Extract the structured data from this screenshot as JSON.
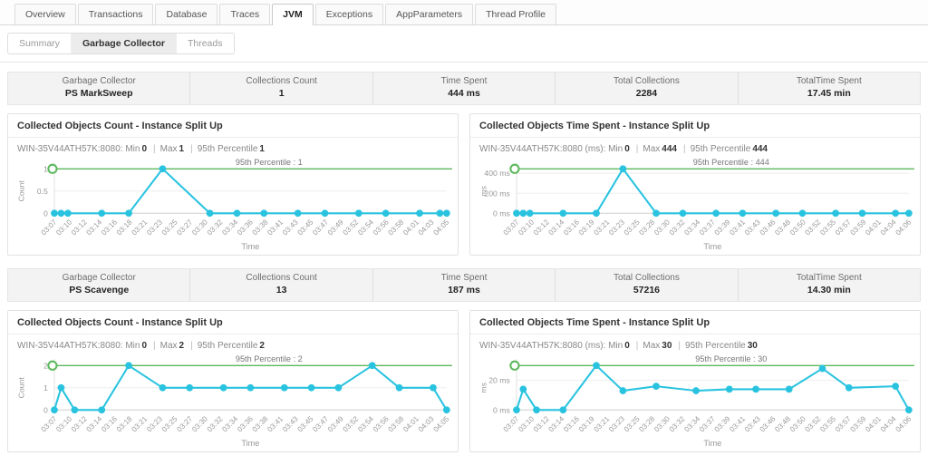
{
  "header_tabs": [
    {
      "label": "Overview",
      "active": false
    },
    {
      "label": "Transactions",
      "active": false
    },
    {
      "label": "Database",
      "active": false
    },
    {
      "label": "Traces",
      "active": false
    },
    {
      "label": "JVM",
      "active": true
    },
    {
      "label": "Exceptions",
      "active": false
    },
    {
      "label": "AppParameters",
      "active": false
    },
    {
      "label": "Thread Profile",
      "active": false
    }
  ],
  "sub_tabs": [
    {
      "label": "Summary",
      "active": false
    },
    {
      "label": "Garbage Collector",
      "active": true
    },
    {
      "label": "Threads",
      "active": false
    }
  ],
  "labels": {
    "min": "Min",
    "max": "Max",
    "p95": "95th Percentile",
    "sep": "|",
    "time_axis": "Time"
  },
  "colors": {
    "series": "#29c3e0",
    "percentile_line": "#5cb85c",
    "grid": "#ededed",
    "axis": "#cfcfcf",
    "tick_text": "#999999"
  },
  "sections": [
    {
      "stats": [
        {
          "label": "Garbage Collector",
          "value": "PS MarkSweep"
        },
        {
          "label": "Collections Count",
          "value": "1"
        },
        {
          "label": "Time Spent",
          "value": "444 ms"
        },
        {
          "label": "Total Collections",
          "value": "2284"
        },
        {
          "label": "TotalTime Spent",
          "value": "17.45 min"
        }
      ],
      "charts": [
        {
          "title": "Collected Objects Count - Instance Split Up",
          "instance_label": "WIN-35V44ATH57K:8080:",
          "min": "0",
          "max": "1",
          "p95": "1",
          "percentile_label": "95th Percentile : 1",
          "y_axis_label": "Count",
          "y_max": 1,
          "y_ticks": [
            {
              "v": 0,
              "label": "0"
            },
            {
              "v": 0.5,
              "label": "0.5"
            },
            {
              "v": 1,
              "label": "1"
            }
          ],
          "x_domain": [
            7,
            65
          ],
          "x_tick_labels": [
            "03:07",
            "03:10",
            "03:12",
            "03:14",
            "03:16",
            "03:18",
            "03:21",
            "03:23",
            "03:25",
            "03:27",
            "03:30",
            "03:32",
            "03:34",
            "03:36",
            "03:38",
            "03:41",
            "03:43",
            "03:45",
            "03:47",
            "03:49",
            "03:52",
            "03:54",
            "03:56",
            "03:58",
            "04:01",
            "04:03",
            "04:05"
          ],
          "points": [
            [
              7,
              0
            ],
            [
              8,
              0
            ],
            [
              9,
              0
            ],
            [
              14,
              0
            ],
            [
              18,
              0
            ],
            [
              23,
              1
            ],
            [
              30,
              0
            ],
            [
              34,
              0
            ],
            [
              38,
              0
            ],
            [
              43,
              0
            ],
            [
              47,
              0
            ],
            [
              52,
              0
            ],
            [
              56,
              0
            ],
            [
              61,
              0
            ],
            [
              64,
              0
            ],
            [
              65,
              0
            ]
          ]
        },
        {
          "title": "Collected Objects Time Spent - Instance Split Up",
          "instance_label": "WIN-35V44ATH57K:8080 (ms):",
          "min": "0",
          "max": "444",
          "p95": "444",
          "percentile_label": "95th Percentile : 444",
          "y_axis_label": "ms",
          "y_max": 444,
          "y_ticks": [
            {
              "v": 0,
              "label": "0 ms"
            },
            {
              "v": 200,
              "label": "200 ms"
            },
            {
              "v": 400,
              "label": "400 ms"
            }
          ],
          "x_domain": [
            7,
            66
          ],
          "x_tick_labels": [
            "03:07",
            "03:10",
            "03:12",
            "03:14",
            "03:16",
            "03:19",
            "03:21",
            "03:23",
            "03:25",
            "03:28",
            "03:30",
            "03:32",
            "03:34",
            "03:37",
            "03:39",
            "03:41",
            "03:43",
            "03:46",
            "03:48",
            "03:50",
            "03:52",
            "03:55",
            "03:57",
            "03:59",
            "04:01",
            "04:04",
            "04:06"
          ],
          "points": [
            [
              7,
              0
            ],
            [
              8,
              0
            ],
            [
              9,
              0
            ],
            [
              14,
              0
            ],
            [
              19,
              0
            ],
            [
              23,
              444
            ],
            [
              28,
              0
            ],
            [
              32,
              0
            ],
            [
              37,
              0
            ],
            [
              41,
              0
            ],
            [
              46,
              0
            ],
            [
              50,
              0
            ],
            [
              55,
              0
            ],
            [
              59,
              0
            ],
            [
              64,
              0
            ],
            [
              66,
              0
            ]
          ]
        }
      ]
    },
    {
      "stats": [
        {
          "label": "Garbage Collector",
          "value": "PS Scavenge"
        },
        {
          "label": "Collections Count",
          "value": "13"
        },
        {
          "label": "Time Spent",
          "value": "187 ms"
        },
        {
          "label": "Total Collections",
          "value": "57216"
        },
        {
          "label": "TotalTime Spent",
          "value": "14.30 min"
        }
      ],
      "charts": [
        {
          "title": "Collected Objects Count - Instance Split Up",
          "instance_label": "WIN-35V44ATH57K:8080:",
          "min": "0",
          "max": "2",
          "p95": "2",
          "percentile_label": "95th Percentile : 2",
          "y_axis_label": "Count",
          "y_max": 2,
          "y_ticks": [
            {
              "v": 0,
              "label": "0"
            },
            {
              "v": 1,
              "label": "1"
            },
            {
              "v": 2,
              "label": "2"
            }
          ],
          "x_domain": [
            7,
            65
          ],
          "x_tick_labels": [
            "03:07",
            "03:10",
            "03:12",
            "03:14",
            "03:16",
            "03:18",
            "03:21",
            "03:23",
            "03:25",
            "03:27",
            "03:30",
            "03:32",
            "03:34",
            "03:36",
            "03:38",
            "03:41",
            "03:43",
            "03:45",
            "03:47",
            "03:49",
            "03:52",
            "03:54",
            "03:56",
            "03:58",
            "04:01",
            "04:03",
            "04:05"
          ],
          "points": [
            [
              7,
              0
            ],
            [
              8,
              1
            ],
            [
              10,
              0
            ],
            [
              14,
              0
            ],
            [
              18,
              2
            ],
            [
              23,
              1
            ],
            [
              27,
              1
            ],
            [
              32,
              1
            ],
            [
              36,
              1
            ],
            [
              41,
              1
            ],
            [
              45,
              1
            ],
            [
              49,
              1
            ],
            [
              54,
              2
            ],
            [
              58,
              1
            ],
            [
              63,
              1
            ],
            [
              65,
              0
            ]
          ]
        },
        {
          "title": "Collected Objects Time Spent - Instance Split Up",
          "instance_label": "WIN-35V44ATH57K:8080 (ms):",
          "min": "0",
          "max": "30",
          "p95": "30",
          "percentile_label": "95th Percentile : 30",
          "y_axis_label": "ms",
          "y_max": 30,
          "y_ticks": [
            {
              "v": 0,
              "label": "0 ms"
            },
            {
              "v": 20,
              "label": "20 ms"
            }
          ],
          "x_domain": [
            7,
            66
          ],
          "x_tick_labels": [
            "03:07",
            "03:10",
            "03:12",
            "03:14",
            "03:16",
            "03:19",
            "03:21",
            "03:23",
            "03:25",
            "03:28",
            "03:30",
            "03:32",
            "03:34",
            "03:37",
            "03:39",
            "03:41",
            "03:43",
            "03:46",
            "03:48",
            "03:50",
            "03:52",
            "03:55",
            "03:57",
            "03:59",
            "04:01",
            "04:04",
            "04:06"
          ],
          "points": [
            [
              7,
              0
            ],
            [
              8,
              14
            ],
            [
              10,
              0
            ],
            [
              14,
              0
            ],
            [
              19,
              30
            ],
            [
              23,
              13
            ],
            [
              28,
              16
            ],
            [
              34,
              13
            ],
            [
              39,
              14
            ],
            [
              43,
              14
            ],
            [
              48,
              14
            ],
            [
              53,
              28
            ],
            [
              57,
              15
            ],
            [
              64,
              16
            ],
            [
              66,
              0
            ]
          ]
        }
      ]
    }
  ]
}
